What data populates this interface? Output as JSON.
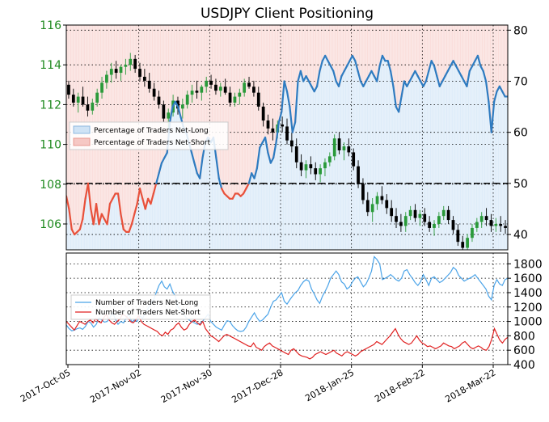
{
  "chart_data": {
    "title": "USDJPY Client Positioning",
    "colors": {
      "long_fill": "#cfe3f5",
      "short_fill": "#f6c8c4",
      "long_line": "#2e7bc0",
      "short_line": "#e8503a",
      "candle_up": "#2a9a3a",
      "candle_down": "#000000",
      "left_axis_text": "#1f8a1f"
    },
    "x_labels": [
      "2017-Oct-05",
      "2017-Nov-02",
      "2017-Nov-30",
      "2017-Dec-28",
      "2018-Jan-25",
      "2018-Feb-22",
      "2018-Mar-22"
    ],
    "top_panel": {
      "type": "candlestick-with-sentiment-line",
      "price_axis": {
        "side": "left",
        "ticks": [
          106,
          108,
          110,
          112,
          114,
          116
        ],
        "range": [
          104.7,
          116
        ]
      },
      "sentiment_axis": {
        "side": "right",
        "ticks": [
          40,
          50,
          60,
          70,
          80
        ],
        "range": [
          37,
          81
        ]
      },
      "threshold": 50,
      "legend": {
        "placement": "middle-left",
        "items": [
          "Percentage of Traders Net-Long",
          "Percentage of Traders Net-Short"
        ]
      },
      "sentiment_pct_net_long": [
        47.5,
        45,
        41,
        40,
        40.5,
        41,
        43,
        47,
        50,
        45,
        42,
        46,
        42,
        44,
        43,
        42,
        46,
        47,
        48,
        48,
        44,
        41,
        40.5,
        40.5,
        42,
        44,
        46,
        49,
        47,
        45,
        47,
        46,
        48,
        50,
        52,
        54,
        55,
        56,
        62,
        65,
        66,
        65,
        63,
        61,
        60,
        58,
        56,
        54,
        52,
        51,
        55,
        58,
        59,
        58,
        59,
        55,
        51,
        49,
        48,
        47.5,
        47,
        47,
        48,
        48,
        47.5,
        48,
        49,
        50,
        52,
        51,
        53,
        57,
        58,
        59,
        56,
        54,
        55,
        58,
        62,
        64,
        70,
        68,
        65,
        60,
        62,
        70,
        72,
        70,
        71,
        70,
        69,
        68,
        69,
        72,
        74,
        75,
        74,
        73,
        72,
        70,
        69,
        71,
        72,
        73,
        74,
        75,
        74,
        72,
        70,
        69,
        70,
        71,
        72,
        71,
        70,
        73,
        75,
        74,
        74,
        72,
        69,
        65,
        64,
        67,
        70,
        69,
        70,
        71,
        72,
        71,
        70,
        69,
        70,
        72,
        74,
        73,
        71,
        69,
        70,
        71,
        72,
        73,
        74,
        73,
        72,
        71,
        70,
        69,
        72,
        73,
        74,
        75,
        73,
        72,
        70,
        66,
        60,
        66,
        68,
        69,
        68,
        67,
        67
      ],
      "ohlc": [
        [
          113.0,
          113.2,
          112.3,
          112.5
        ],
        [
          112.5,
          112.8,
          111.9,
          112.1
        ],
        [
          112.1,
          112.6,
          111.6,
          112.4
        ],
        [
          112.4,
          112.9,
          111.9,
          112.0
        ],
        [
          112.0,
          112.4,
          111.4,
          111.7
        ],
        [
          111.7,
          112.3,
          111.5,
          112.1
        ],
        [
          112.1,
          112.8,
          111.9,
          112.6
        ],
        [
          112.6,
          113.4,
          112.3,
          113.1
        ],
        [
          113.1,
          113.7,
          112.8,
          113.5
        ],
        [
          113.5,
          114.1,
          113.1,
          113.8
        ],
        [
          113.8,
          114.2,
          113.3,
          113.6
        ],
        [
          113.6,
          114.0,
          113.2,
          113.9
        ],
        [
          113.9,
          114.3,
          113.5,
          114.0
        ],
        [
          114.0,
          114.6,
          113.7,
          114.3
        ],
        [
          114.3,
          114.5,
          113.6,
          113.8
        ],
        [
          113.8,
          114.1,
          113.2,
          113.4
        ],
        [
          113.4,
          113.8,
          112.9,
          113.2
        ],
        [
          113.2,
          113.6,
          112.6,
          112.8
        ],
        [
          112.8,
          113.1,
          112.2,
          112.4
        ],
        [
          112.4,
          112.7,
          111.8,
          112.0
        ],
        [
          112.0,
          112.2,
          111.1,
          111.3
        ],
        [
          111.3,
          111.8,
          110.8,
          111.6
        ],
        [
          111.6,
          112.5,
          111.4,
          112.2
        ],
        [
          112.2,
          112.4,
          111.5,
          111.8
        ],
        [
          111.8,
          112.3,
          111.3,
          112.0
        ],
        [
          112.0,
          112.7,
          111.8,
          112.5
        ],
        [
          112.5,
          113.0,
          112.1,
          112.7
        ],
        [
          112.7,
          113.2,
          112.3,
          112.6
        ],
        [
          112.6,
          113.0,
          112.2,
          112.9
        ],
        [
          112.9,
          113.4,
          112.6,
          113.2
        ],
        [
          113.2,
          113.5,
          112.8,
          113.0
        ],
        [
          113.0,
          113.3,
          112.5,
          112.7
        ],
        [
          112.7,
          113.1,
          112.4,
          112.9
        ],
        [
          112.9,
          113.3,
          112.5,
          112.6
        ],
        [
          112.6,
          112.9,
          111.9,
          112.1
        ],
        [
          112.1,
          112.6,
          111.9,
          112.4
        ],
        [
          112.4,
          112.8,
          112.0,
          112.6
        ],
        [
          112.6,
          113.3,
          112.4,
          113.1
        ],
        [
          113.1,
          113.4,
          112.8,
          112.9
        ],
        [
          112.9,
          113.2,
          112.4,
          112.6
        ],
        [
          112.6,
          112.9,
          111.7,
          111.9
        ],
        [
          111.9,
          112.1,
          110.9,
          111.2
        ],
        [
          111.2,
          111.5,
          110.5,
          110.8
        ],
        [
          110.8,
          111.3,
          110.2,
          110.6
        ],
        [
          110.6,
          111.2,
          110.3,
          111.0
        ],
        [
          111.0,
          111.4,
          110.6,
          110.9
        ],
        [
          110.9,
          111.3,
          110.0,
          110.2
        ],
        [
          110.2,
          110.6,
          109.6,
          109.9
        ],
        [
          109.9,
          110.3,
          108.8,
          109.1
        ],
        [
          109.1,
          109.5,
          108.4,
          108.7
        ],
        [
          108.7,
          109.2,
          108.3,
          109.0
        ],
        [
          109.0,
          109.4,
          108.5,
          108.8
        ],
        [
          108.8,
          109.1,
          108.2,
          108.5
        ],
        [
          108.5,
          109.0,
          108.1,
          108.8
        ],
        [
          108.8,
          109.3,
          108.4,
          109.1
        ],
        [
          109.1,
          109.6,
          108.9,
          109.4
        ],
        [
          109.4,
          110.5,
          109.2,
          110.3
        ],
        [
          110.3,
          110.6,
          109.5,
          109.7
        ],
        [
          109.7,
          110.1,
          109.2,
          109.9
        ],
        [
          109.9,
          110.3,
          109.4,
          109.6
        ],
        [
          109.6,
          109.8,
          108.7,
          108.9
        ],
        [
          108.9,
          109.2,
          107.8,
          108.0
        ],
        [
          108.0,
          108.3,
          107.0,
          107.2
        ],
        [
          107.2,
          107.6,
          106.4,
          106.6
        ],
        [
          106.6,
          107.3,
          106.1,
          107.0
        ],
        [
          107.0,
          107.6,
          106.7,
          107.4
        ],
        [
          107.4,
          107.9,
          107.0,
          107.2
        ],
        [
          107.2,
          107.5,
          106.5,
          106.8
        ],
        [
          106.8,
          107.2,
          106.1,
          106.4
        ],
        [
          106.4,
          106.8,
          105.8,
          106.1
        ],
        [
          106.1,
          106.5,
          105.6,
          105.9
        ],
        [
          105.9,
          106.6,
          105.6,
          106.4
        ],
        [
          106.4,
          106.9,
          106.2,
          106.7
        ],
        [
          106.7,
          107.0,
          106.1,
          106.3
        ],
        [
          106.3,
          106.7,
          105.9,
          106.5
        ],
        [
          106.5,
          106.8,
          105.9,
          106.1
        ],
        [
          106.1,
          106.4,
          105.6,
          105.8
        ],
        [
          105.8,
          106.2,
          105.4,
          106.0
        ],
        [
          106.0,
          106.6,
          105.8,
          106.4
        ],
        [
          106.4,
          106.9,
          106.2,
          106.7
        ],
        [
          106.7,
          106.9,
          106.0,
          106.2
        ],
        [
          106.2,
          106.4,
          105.5,
          105.7
        ],
        [
          105.7,
          106.0,
          104.9,
          105.1
        ],
        [
          105.1,
          105.4,
          104.6,
          104.8
        ],
        [
          104.8,
          105.5,
          104.6,
          105.3
        ],
        [
          105.3,
          106.0,
          105.1,
          105.8
        ],
        [
          105.8,
          106.3,
          105.6,
          106.1
        ],
        [
          106.1,
          106.6,
          105.8,
          106.4
        ],
        [
          106.4,
          106.8,
          105.9,
          106.2
        ],
        [
          106.2,
          106.5,
          105.6,
          105.9
        ],
        [
          105.9,
          106.3,
          105.6,
          106.0
        ],
        [
          106.0,
          106.4,
          105.6,
          105.9
        ],
        [
          105.9,
          106.2,
          105.5,
          105.8
        ]
      ]
    },
    "bottom_panel": {
      "type": "line",
      "axis": {
        "side": "right",
        "ticks": [
          400,
          600,
          800,
          1000,
          1200,
          1400,
          1600,
          1800
        ],
        "range": [
          400,
          1950
        ]
      },
      "legend": {
        "placement": "middle-left",
        "items": [
          "Number of Traders Net-Long",
          "Number of Traders Net-Short"
        ]
      },
      "series": [
        {
          "name": "Number of Traders Net-Long",
          "values": [
            950,
            900,
            870,
            880,
            900,
            910,
            890,
            930,
            1000,
            980,
            920,
            960,
            1050,
            1020,
            990,
            1000,
            1050,
            1120,
            1030,
            960,
            1000,
            980,
            1050,
            1100,
            990,
            1020,
            1000,
            1080,
            1040,
            1120,
            1180,
            1250,
            1300,
            1400,
            1500,
            1560,
            1480,
            1450,
            1520,
            1420,
            1350,
            1200,
            1150,
            1100,
            1050,
            1020,
            1000,
            980,
            960,
            970,
            1000,
            1050,
            1100,
            1000,
            960,
            920,
            900,
            880,
            950,
            1010,
            1000,
            940,
            900,
            870,
            860,
            870,
            920,
            1000,
            1060,
            1120,
            1050,
            1000,
            1020,
            1060,
            1100,
            1200,
            1280,
            1300,
            1350,
            1400,
            1280,
            1240,
            1300,
            1350,
            1400,
            1430,
            1500,
            1550,
            1580,
            1560,
            1450,
            1380,
            1300,
            1250,
            1350,
            1420,
            1500,
            1600,
            1650,
            1700,
            1650,
            1550,
            1520,
            1450,
            1480,
            1550,
            1600,
            1620,
            1550,
            1480,
            1520,
            1600,
            1700,
            1900,
            1860,
            1800,
            1580,
            1600,
            1620,
            1650,
            1620,
            1580,
            1560,
            1600,
            1700,
            1720,
            1650,
            1600,
            1540,
            1500,
            1550,
            1650,
            1580,
            1500,
            1600,
            1620,
            1580,
            1540,
            1560,
            1600,
            1640,
            1680,
            1750,
            1720,
            1640,
            1600,
            1560,
            1580,
            1600,
            1620,
            1650,
            1600,
            1550,
            1500,
            1450,
            1350,
            1300,
            1500,
            1580,
            1520,
            1500,
            1580,
            1600
          ]
        },
        {
          "name": "Number of Traders Net-Short",
          "values": [
            1000,
            960,
            920,
            880,
            940,
            1000,
            980,
            960,
            1000,
            1020,
            980,
            1040,
            1000,
            980,
            1050,
            1100,
            1020,
            980,
            960,
            1000,
            1030,
            1100,
            1080,
            1050,
            1000,
            980,
            1020,
            1080,
            1000,
            960,
            940,
            920,
            900,
            880,
            860,
            820,
            800,
            850,
            820,
            880,
            900,
            950,
            980,
            920,
            880,
            900,
            960,
            1000,
            1020,
            980,
            950,
            1000,
            900,
            850,
            800,
            780,
            750,
            720,
            760,
            800,
            820,
            800,
            780,
            760,
            740,
            720,
            700,
            680,
            660,
            650,
            700,
            640,
            620,
            600,
            650,
            680,
            700,
            660,
            640,
            620,
            600,
            580,
            560,
            540,
            600,
            620,
            580,
            540,
            520,
            510,
            500,
            480,
            500,
            540,
            560,
            580,
            560,
            540,
            560,
            580,
            600,
            560,
            540,
            520,
            560,
            580,
            560,
            540,
            520,
            540,
            580,
            600,
            620,
            640,
            660,
            680,
            720,
            700,
            680,
            720,
            760,
            800,
            850,
            900,
            820,
            760,
            720,
            700,
            680,
            700,
            750,
            800,
            740,
            700,
            680,
            650,
            660,
            640,
            620,
            640,
            660,
            700,
            680,
            660,
            650,
            620,
            640,
            660,
            700,
            720,
            680,
            640,
            620,
            640,
            660,
            640,
            610,
            600,
            650,
            750,
            900,
            820,
            740,
            700,
            750,
            780
          ]
        }
      ]
    }
  }
}
